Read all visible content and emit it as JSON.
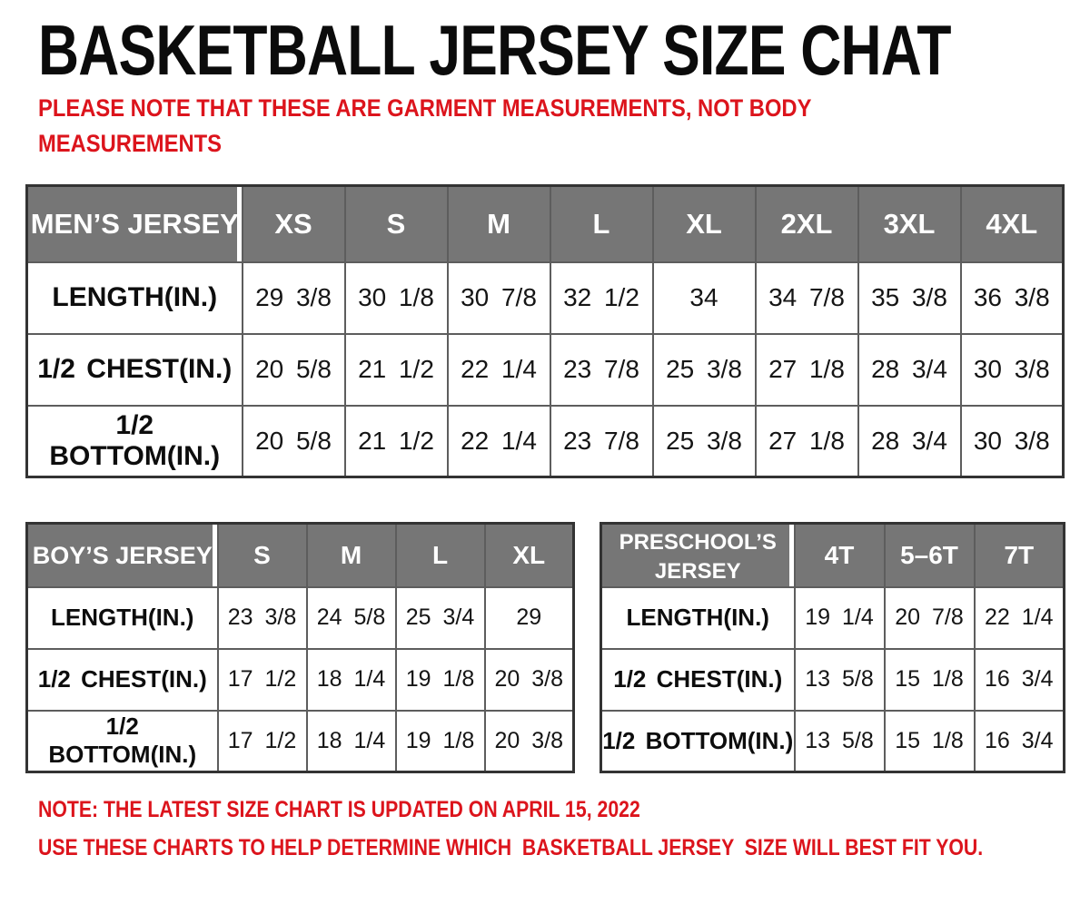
{
  "page": {
    "title": "BASKETBALL JERSEY SIZE CHAT",
    "subtitle_lines": [
      "PLEASE NOTE THAT THESE ARE GARMENT MEASUREMENTS, NOT BODY",
      "MEASUREMENTS"
    ],
    "notes": [
      "NOTE: THE LATEST SIZE CHART IS UPDATED ON APRIL 15, 2022",
      "USE THESE CHARTS TO HELP DETERMINE WHICH  BASKETBALL JERSEY  SIZE WILL BEST FIT YOU."
    ],
    "colors": {
      "accent_red": "#dc141c",
      "header_gray": "#767676",
      "header_text": "#ffffff",
      "border_dark": "#333333",
      "border_inner": "#5d5d5d",
      "body_text": "#111111"
    }
  },
  "tables": [
    {
      "id": "mens",
      "header_label": "MEN’S JERSEY",
      "sizes": [
        "XS",
        "S",
        "M",
        "L",
        "XL",
        "2XL",
        "3XL",
        "4XL"
      ],
      "rows": [
        {
          "label": "LENGTH(IN.)",
          "values": [
            "29 3/8",
            "30 1/8",
            "30 7/8",
            "32 1/2",
            "34",
            "34 7/8",
            "35 3/8",
            "36 3/8"
          ]
        },
        {
          "label": "1/2 CHEST(IN.)",
          "values": [
            "20 5/8",
            "21 1/2",
            "22 1/4",
            "23 7/8",
            "25 3/8",
            "27 1/8",
            "28 3/4",
            "30 3/8"
          ]
        },
        {
          "label": "1/2 BOTTOM(IN.)",
          "values": [
            "20 5/8",
            "21 1/2",
            "22 1/4",
            "23 7/8",
            "25 3/8",
            "27 1/8",
            "28 3/4",
            "30 3/8"
          ]
        }
      ]
    },
    {
      "id": "boys",
      "header_label": "BOY’S JERSEY",
      "sizes": [
        "S",
        "M",
        "L",
        "XL"
      ],
      "rows": [
        {
          "label": "LENGTH(IN.)",
          "values": [
            "23 3/8",
            "24 5/8",
            "25 3/4",
            "29"
          ]
        },
        {
          "label": "1/2 CHEST(IN.)",
          "values": [
            "17 1/2",
            "18 1/4",
            "19 1/8",
            "20 3/8"
          ]
        },
        {
          "label": "1/2 BOTTOM(IN.)",
          "values": [
            "17 1/2",
            "18 1/4",
            "19 1/8",
            "20 3/8"
          ]
        }
      ]
    },
    {
      "id": "preschool",
      "header_label": "PRESCHOOL’S JERSEY",
      "sizes": [
        "4T",
        "5–6T",
        "7T"
      ],
      "rows": [
        {
          "label": "LENGTH(IN.)",
          "values": [
            "19 1/4",
            "20 7/8",
            "22 1/4"
          ]
        },
        {
          "label": "1/2 CHEST(IN.)",
          "values": [
            "13 5/8",
            "15 1/8",
            "16 3/4"
          ]
        },
        {
          "label": "1/2 BOTTOM(IN.)",
          "values": [
            "13 5/8",
            "15 1/8",
            "16 3/4"
          ]
        }
      ]
    }
  ]
}
